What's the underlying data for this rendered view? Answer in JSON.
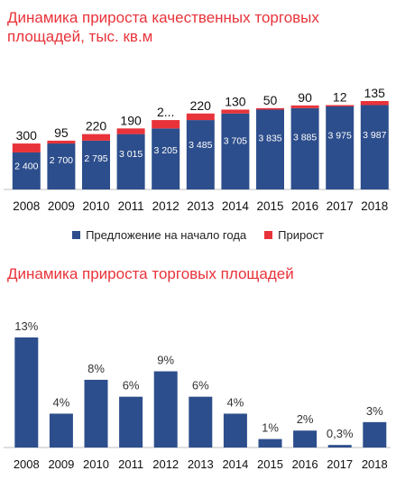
{
  "chart_data": [
    {
      "type": "bar",
      "stacked": true,
      "title": "Динамика прироста качественных торговых площадей, тыс. кв.м",
      "categories": [
        "2008",
        "2009",
        "2010",
        "2011",
        "2012",
        "2013",
        "2014",
        "2015",
        "2016",
        "2017",
        "2018"
      ],
      "series": [
        {
          "name": "Предложение на начало года",
          "color": "#2d4e8c",
          "values": [
            2400,
            2700,
            2795,
            3015,
            3205,
            3485,
            3705,
            3835,
            3885,
            3975,
            3987
          ],
          "labels": [
            "2 400",
            "2 700",
            "2 795",
            "3 015",
            "3 205",
            "3 485",
            "3 705",
            "3 835",
            "3 885",
            "3 975",
            "3 987"
          ]
        },
        {
          "name": "Прирост",
          "color": "#e8333a",
          "values": [
            300,
            95,
            220,
            190,
            280,
            220,
            130,
            50,
            90,
            12,
            135
          ],
          "labels": [
            "300",
            "95",
            "220",
            "190",
            "2...",
            "220",
            "130",
            "50",
            "90",
            "12",
            "135"
          ]
        }
      ],
      "legend_position": "bottom",
      "grid": false
    },
    {
      "type": "bar",
      "title": "Динамика прироста торговых площадей",
      "categories": [
        "2008",
        "2009",
        "2010",
        "2011",
        "2012",
        "2013",
        "2014",
        "2015",
        "2016",
        "2017",
        "2018"
      ],
      "values": [
        13,
        4,
        8,
        6,
        9,
        6,
        4,
        1,
        2,
        0.3,
        3
      ],
      "labels": [
        "13%",
        "4%",
        "8%",
        "6%",
        "9%",
        "6%",
        "4%",
        "1%",
        "2%",
        "0,3%",
        "3%"
      ],
      "color": "#2d4e8c",
      "grid": false
    }
  ]
}
